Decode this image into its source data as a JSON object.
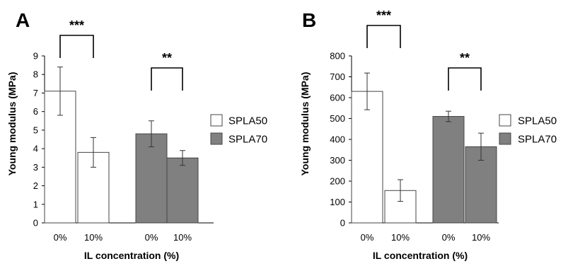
{
  "chart_data": [
    {
      "type": "bar",
      "panel": "A",
      "ylabel": "Young modulus (MPa)",
      "xlabel": "IL concentration (%)",
      "ylim": [
        0,
        9
      ],
      "yticks": [
        0,
        1,
        2,
        3,
        4,
        5,
        6,
        7,
        8,
        9
      ],
      "groups": [
        {
          "series": "SPLA50",
          "categories": [
            "0%",
            "10%"
          ],
          "values": [
            7.1,
            3.8
          ],
          "errors": [
            1.3,
            0.8
          ],
          "significance": "***"
        },
        {
          "series": "SPLA70",
          "categories": [
            "0%",
            "10%"
          ],
          "values": [
            4.8,
            3.5
          ],
          "errors": [
            0.7,
            0.4
          ],
          "significance": "**"
        }
      ],
      "legend": [
        {
          "name": "SPLA50",
          "color": "#ffffff"
        },
        {
          "name": "SPLA70",
          "color": "#808080"
        }
      ]
    },
    {
      "type": "bar",
      "panel": "B",
      "ylabel": "Young modulus (MPa)",
      "xlabel": "IL concentration (%)",
      "ylim": [
        0,
        800
      ],
      "yticks": [
        0,
        100,
        200,
        300,
        400,
        500,
        600,
        700,
        800
      ],
      "groups": [
        {
          "series": "SPLA50",
          "categories": [
            "0%",
            "10%"
          ],
          "values": [
            630,
            155
          ],
          "errors": [
            88,
            52
          ],
          "significance": "***"
        },
        {
          "series": "SPLA70",
          "categories": [
            "0%",
            "10%"
          ],
          "values": [
            510,
            365
          ],
          "errors": [
            25,
            65
          ],
          "significance": "**"
        }
      ],
      "legend": [
        {
          "name": "SPLA50",
          "color": "#ffffff"
        },
        {
          "name": "SPLA70",
          "color": "#808080"
        }
      ]
    }
  ]
}
